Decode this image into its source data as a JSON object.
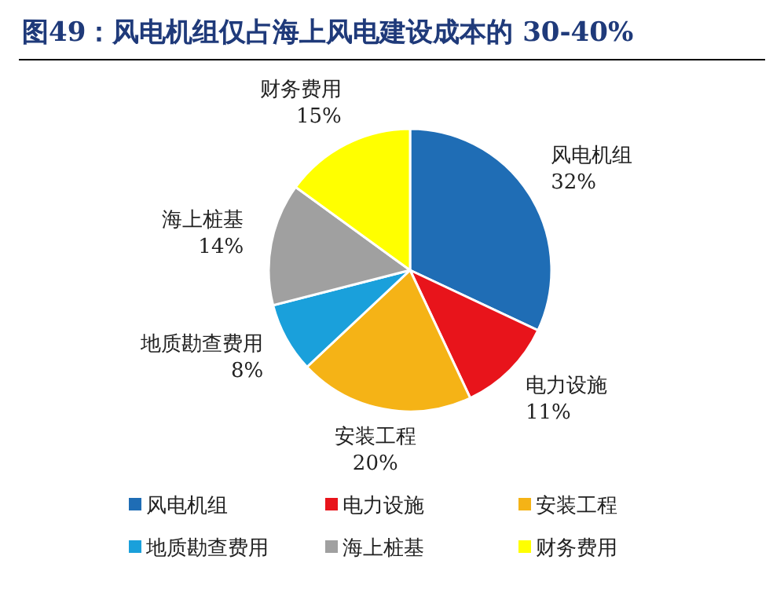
{
  "chart_data": {
    "type": "pie",
    "title": "图49：风电机组仅占海上风电建设成本的 30-40%",
    "categories": [
      "风电机组",
      "电力设施",
      "安装工程",
      "地质勘查费用",
      "海上桩基",
      "财务费用"
    ],
    "values": [
      32,
      11,
      20,
      8,
      14,
      15
    ],
    "value_labels": [
      "32%",
      "11%",
      "20%",
      "8%",
      "14%",
      "15%"
    ],
    "colors": [
      "#1f6db5",
      "#e8141b",
      "#f5b316",
      "#1aa0db",
      "#a0a0a0",
      "#ffff00"
    ],
    "legend": "bottom"
  }
}
